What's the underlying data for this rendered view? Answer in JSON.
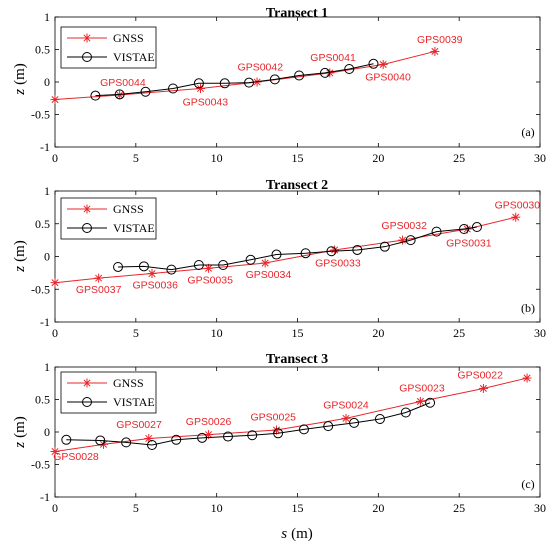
{
  "colors": {
    "gnss": "#e8262b",
    "vistae": "#000000",
    "axis": "#000000"
  },
  "legend": {
    "items": [
      "GNSS",
      "VISTAE"
    ],
    "placement": "top-left"
  },
  "chart_data": [
    {
      "type": "line",
      "title": "Transect 1",
      "panel_tag": "(a)",
      "xlabel": "",
      "ylabel_var": "z",
      "ylabel_unit": "(m)",
      "xlim": [
        0,
        30
      ],
      "ylim": [
        -1,
        1
      ],
      "xticks": [
        0,
        5,
        10,
        15,
        20,
        25,
        30
      ],
      "yticks": [
        -1,
        -0.5,
        0,
        0.5,
        1
      ],
      "series": [
        {
          "name": "GNSS",
          "marker": "star",
          "x": [
            0,
            4,
            9,
            12.5,
            17,
            20.3,
            23.5
          ],
          "y": [
            -0.27,
            -0.2,
            -0.1,
            0.0,
            0.14,
            0.27,
            0.47
          ]
        },
        {
          "name": "VISTAE",
          "marker": "circle",
          "x": [
            2.5,
            4,
            5.6,
            7.3,
            8.9,
            10.5,
            12,
            13.6,
            15.1,
            16.7,
            18.2,
            19.7
          ],
          "y": [
            -0.21,
            -0.19,
            -0.15,
            -0.1,
            -0.02,
            -0.02,
            -0.01,
            0.04,
            0.1,
            0.14,
            0.2,
            0.28
          ]
        }
      ],
      "annotations": [
        {
          "text": "GPS0044",
          "x": 4.2,
          "y": -0.06
        },
        {
          "text": "GPS0043",
          "x": 9.3,
          "y": -0.36
        },
        {
          "text": "GPS0042",
          "x": 12.7,
          "y": 0.18
        },
        {
          "text": "GPS0041",
          "x": 17.2,
          "y": 0.32
        },
        {
          "text": "GPS0040",
          "x": 20.6,
          "y": 0.02
        },
        {
          "text": "GPS0039",
          "x": 23.8,
          "y": 0.6
        }
      ]
    },
    {
      "type": "line",
      "title": "Transect 2",
      "panel_tag": "(b)",
      "xlabel": "",
      "ylabel_var": "z",
      "ylabel_unit": "(m)",
      "xlim": [
        0,
        30
      ],
      "ylim": [
        -1,
        1
      ],
      "xticks": [
        0,
        5,
        10,
        15,
        20,
        25,
        30
      ],
      "yticks": [
        -1,
        -0.5,
        0,
        0.5,
        1
      ],
      "series": [
        {
          "name": "GNSS",
          "marker": "star",
          "x": [
            0,
            2.7,
            6,
            9.5,
            13,
            17.3,
            21.5,
            25.5,
            28.5
          ],
          "y": [
            -0.4,
            -0.33,
            -0.26,
            -0.18,
            -0.1,
            0.1,
            0.25,
            0.42,
            0.6
          ]
        },
        {
          "name": "VISTAE",
          "marker": "circle",
          "x": [
            3.9,
            5.5,
            7.2,
            8.9,
            10.4,
            12.1,
            13.7,
            15.5,
            17.1,
            18.7,
            20.4,
            22,
            23.6,
            25.3,
            26.1
          ],
          "y": [
            -0.16,
            -0.15,
            -0.2,
            -0.13,
            -0.13,
            -0.05,
            0.03,
            0.05,
            0.08,
            0.1,
            0.15,
            0.25,
            0.38,
            0.42,
            0.45
          ]
        }
      ],
      "annotations": [
        {
          "text": "GPS0037",
          "x": 2.7,
          "y": -0.56
        },
        {
          "text": "GPS0036",
          "x": 6.2,
          "y": -0.49
        },
        {
          "text": "GPS0035",
          "x": 9.6,
          "y": -0.41
        },
        {
          "text": "GPS0034",
          "x": 13.2,
          "y": -0.33
        },
        {
          "text": "GPS0033",
          "x": 17.5,
          "y": -0.15
        },
        {
          "text": "GPS0032",
          "x": 21.6,
          "y": 0.42
        },
        {
          "text": "GPS0031",
          "x": 25.6,
          "y": 0.15
        },
        {
          "text": "GPS0030",
          "x": 28.6,
          "y": 0.73
        }
      ]
    },
    {
      "type": "line",
      "title": "Transect 3",
      "panel_tag": "(c)",
      "xlabel_var": "s",
      "xlabel_unit": "(m)",
      "ylabel_var": "z",
      "ylabel_unit": "(m)",
      "xlim": [
        0,
        30
      ],
      "ylim": [
        -1,
        1
      ],
      "xticks": [
        0,
        5,
        10,
        15,
        20,
        25,
        30
      ],
      "yticks": [
        -1,
        -0.5,
        0,
        0.5,
        1
      ],
      "series": [
        {
          "name": "GNSS",
          "marker": "star",
          "x": [
            0,
            3,
            5.8,
            9.5,
            13.7,
            18,
            22.6,
            26.5,
            29.2
          ],
          "y": [
            -0.3,
            -0.19,
            -0.1,
            -0.04,
            0.03,
            0.21,
            0.47,
            0.67,
            0.83
          ]
        },
        {
          "name": "VISTAE",
          "marker": "circle",
          "x": [
            0.7,
            2.8,
            4.4,
            6,
            7.5,
            9.1,
            10.7,
            12.2,
            13.8,
            15.4,
            16.9,
            18.5,
            20.1,
            21.7,
            23.2
          ],
          "y": [
            -0.12,
            -0.13,
            -0.16,
            -0.2,
            -0.12,
            -0.09,
            -0.07,
            -0.05,
            -0.02,
            0.04,
            0.09,
            0.14,
            0.2,
            0.3,
            0.45
          ]
        }
      ],
      "annotations": [
        {
          "text": "GPS0028",
          "x": 1.3,
          "y": -0.43
        },
        {
          "text": "GPS0027",
          "x": 5.2,
          "y": 0.06
        },
        {
          "text": "GPS0026",
          "x": 9.5,
          "y": 0.11
        },
        {
          "text": "GPS0025",
          "x": 13.5,
          "y": 0.18
        },
        {
          "text": "GPS0024",
          "x": 18,
          "y": 0.36
        },
        {
          "text": "GPS0023",
          "x": 22.7,
          "y": 0.62
        },
        {
          "text": "GPS0022",
          "x": 26.3,
          "y": 0.82
        }
      ]
    }
  ]
}
